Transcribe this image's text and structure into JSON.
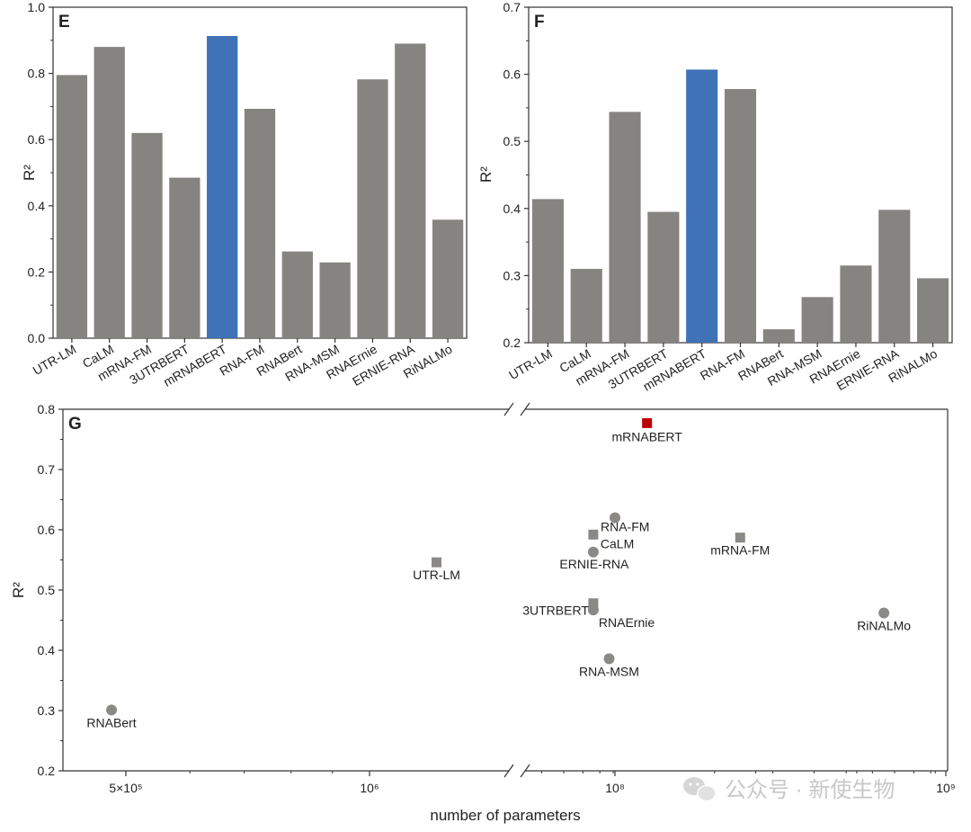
{
  "chart_data": [
    {
      "panel": "E",
      "type": "bar",
      "ylabel": "R²",
      "ylim": [
        0.0,
        1.0
      ],
      "yticks": [
        "0.0",
        "0.2",
        "0.4",
        "0.6",
        "0.8",
        "1.0"
      ],
      "categories": [
        "UTR-LM",
        "CaLM",
        "mRNA-FM",
        "3UTRBERT",
        "mRNABERT",
        "RNA-FM",
        "RNABert",
        "RNA-MSM",
        "RNAErnie",
        "ERNIE-RNA",
        "RiNALMo"
      ],
      "values": [
        0.795,
        0.88,
        0.62,
        0.485,
        0.913,
        0.693,
        0.262,
        0.229,
        0.782,
        0.89,
        0.358
      ],
      "highlight": "mRNABERT"
    },
    {
      "panel": "F",
      "type": "bar",
      "ylabel": "R²",
      "ylim": [
        0.2,
        0.7
      ],
      "yticks": [
        "0.2",
        "0.3",
        "0.4",
        "0.5",
        "0.6",
        "0.7"
      ],
      "categories": [
        "UTR-LM",
        "CaLM",
        "mRNA-FM",
        "3UTRBERT",
        "mRNABERT",
        "RNA-FM",
        "RNABert",
        "RNA-MSM",
        "RNAErnie",
        "ERNIE-RNA",
        "RiNALMo"
      ],
      "values": [
        0.414,
        0.31,
        0.544,
        0.395,
        0.607,
        0.578,
        0.22,
        0.268,
        0.315,
        0.398,
        0.296
      ],
      "highlight": "mRNABERT"
    },
    {
      "panel": "G",
      "type": "scatter",
      "xlabel": "number of parameters",
      "ylabel": "R²",
      "xscale": "log (broken axis)",
      "ylim": [
        0.2,
        0.8
      ],
      "yticks": [
        "0.2",
        "0.3",
        "0.4",
        "0.5",
        "0.6",
        "0.7",
        "0.8"
      ],
      "xticks": [
        {
          "label": "5×10⁵",
          "value": 500000
        },
        {
          "label": "10⁶",
          "value": 1000000
        },
        {
          "label": "10⁸",
          "value": 100000000
        },
        {
          "label": "10⁹",
          "value": 1000000000
        }
      ],
      "points": [
        {
          "name": "mRNABERT",
          "params": 125000000,
          "r2": 0.777,
          "marker": "square",
          "highlight": true
        },
        {
          "name": "RNA-FM",
          "params": 100000000,
          "r2": 0.62,
          "marker": "circle"
        },
        {
          "name": "CaLM",
          "params": 86000000,
          "r2": 0.592,
          "marker": "square"
        },
        {
          "name": "ERNIE-RNA",
          "params": 86000000,
          "r2": 0.563,
          "marker": "circle"
        },
        {
          "name": "mRNA-FM",
          "params": 239000000,
          "r2": 0.587,
          "marker": "square"
        },
        {
          "name": "UTR-LM",
          "params": 1210000,
          "r2": 0.546,
          "marker": "square"
        },
        {
          "name": "3UTRBERT",
          "params": 86000000,
          "r2": 0.478,
          "marker": "square"
        },
        {
          "name": "RNAErnie",
          "params": 86000000,
          "r2": 0.467,
          "marker": "circle"
        },
        {
          "name": "RiNALMo",
          "params": 650000000,
          "r2": 0.462,
          "marker": "circle"
        },
        {
          "name": "RNA-MSM",
          "params": 96000000,
          "r2": 0.386,
          "marker": "circle"
        },
        {
          "name": "RNABert",
          "params": 480000,
          "r2": 0.301,
          "marker": "circle"
        }
      ]
    }
  ],
  "colors": {
    "bar": "#858480",
    "highlight_bar": "#3f72b7",
    "point": "#8a8986",
    "highlight_point": "#c00000"
  },
  "watermark": "公众号 · 新使生物"
}
